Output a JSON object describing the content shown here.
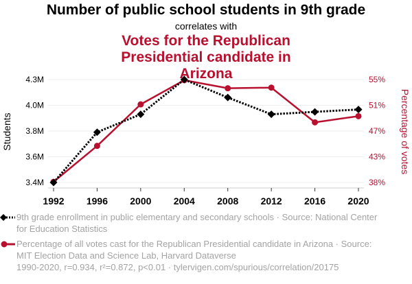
{
  "header": {
    "title": "Number of public school students in 9th grade",
    "subtitle": "correlates with",
    "title2": "Votes for the Republican Presidential candidate in Arizona"
  },
  "legend": {
    "series1": "9th grade enrollment in public elementary and secondary schools · Source: National Center for Education Statistics",
    "series2": "Percentage of all votes cast for the Republican Presidential candidate in Arizona · Source: MIT Election Data and Science Lab, Harvard Dataverse"
  },
  "footer": "1990-2020, r=0.934, r²=0.872, p<0.01 · tylervigen.com/spurious/correlation/20175",
  "colors": {
    "series1": "#000000",
    "series2": "#b8102f",
    "grid": "#eeeeee"
  },
  "chart_data": {
    "type": "line",
    "title": "Number of public school students in 9th grade correlates with Votes for the Republican Presidential candidate in Arizona",
    "x": [
      1992,
      1996,
      2000,
      2004,
      2008,
      2012,
      2016,
      2020
    ],
    "xticks": [
      "1992",
      "1996",
      "2000",
      "2004",
      "2008",
      "2012",
      "2016",
      "2020"
    ],
    "ylabel_left": "Students",
    "ylabel_right": "Percentage of votes",
    "ylim_left": [
      3.4,
      4.26
    ],
    "ylim_right": [
      38.4,
      55.0
    ],
    "yticks_left": [
      "3.4M",
      "3.6M",
      "3.8M",
      "4.0M",
      "4.3M"
    ],
    "yticks_right": [
      "38%",
      "43%",
      "47%",
      "51%",
      "55%"
    ],
    "grid": true,
    "legend_position": "bottom",
    "series": [
      {
        "name": "9th grade enrollment in public elementary and secondary schools",
        "axis": "left",
        "unit": "millions",
        "style": "dotted",
        "marker": "diamond",
        "values": [
          3.4,
          3.82,
          3.97,
          4.26,
          4.11,
          3.97,
          3.99,
          4.01
        ]
      },
      {
        "name": "Percentage of all votes cast for the Republican Presidential candidate in Arizona",
        "axis": "right",
        "unit": "percent",
        "style": "solid",
        "marker": "circle",
        "values": [
          38.5,
          44.3,
          51.0,
          54.9,
          53.6,
          53.7,
          48.1,
          49.1
        ]
      }
    ]
  }
}
